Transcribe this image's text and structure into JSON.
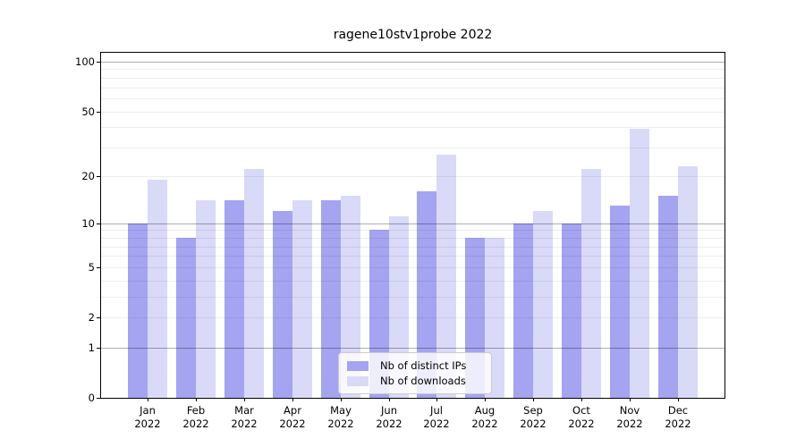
{
  "chart_data": {
    "type": "bar",
    "title": "ragene10stv1probe 2022",
    "categories": [
      "Jan",
      "Feb",
      "Mar",
      "Apr",
      "May",
      "Jun",
      "Jul",
      "Aug",
      "Sep",
      "Oct",
      "Nov",
      "Dec"
    ],
    "category_year": "2022",
    "series": [
      {
        "name": "Nb of distinct IPs",
        "color": "#a4a4f0",
        "values": [
          10,
          8,
          14,
          12,
          14,
          9,
          16,
          8,
          10,
          10,
          13,
          15
        ]
      },
      {
        "name": "Nb of downloads",
        "color": "#d9d9f8",
        "values": [
          19,
          14,
          22,
          14,
          15,
          11,
          27,
          8,
          12,
          22,
          39,
          23
        ]
      }
    ],
    "y_axis": {
      "scale": "log(value+1)",
      "tick_labels": [
        100,
        50,
        20,
        10,
        5,
        2,
        1,
        0
      ],
      "range": [
        0,
        113
      ],
      "major_gridlines": [
        1,
        10,
        100
      ],
      "minor_gridlines": [
        2,
        3,
        4,
        5,
        6,
        7,
        8,
        9,
        20,
        30,
        40,
        50,
        60,
        70,
        80,
        90
      ],
      "grid": true
    },
    "x_axis": {
      "label_line_2": "2022"
    },
    "legend": {
      "position": "bottom-center"
    },
    "colors": {
      "spine": "#000000",
      "background": "#ffffff"
    }
  }
}
